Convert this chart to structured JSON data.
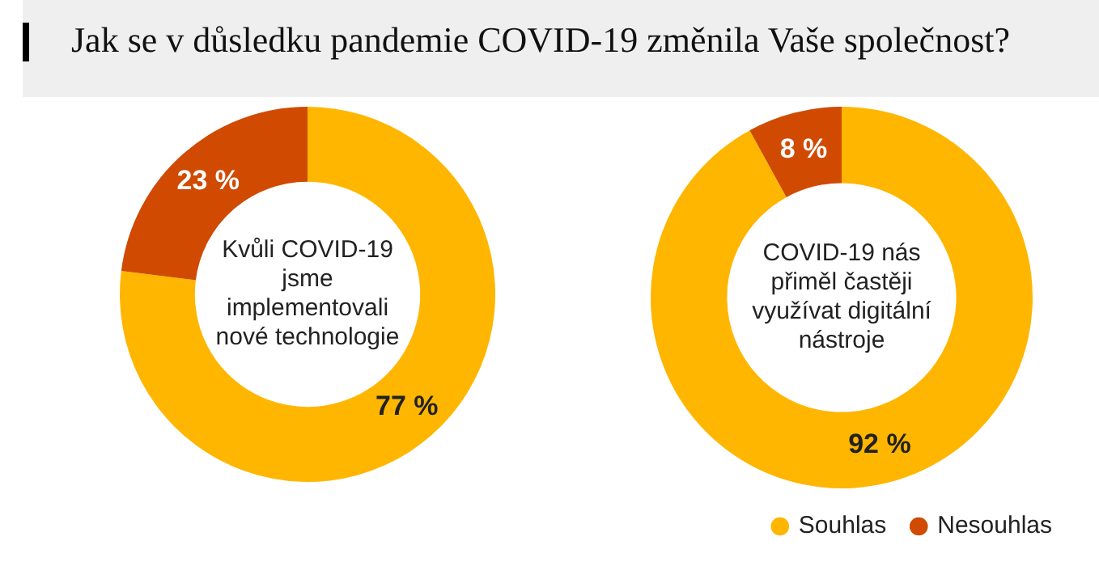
{
  "chart_data": [
    {
      "type": "donut",
      "title": "Jak se v důsledku pandemie COVID-19 změnila Vaše společnost?",
      "categories": [
        null,
        null
      ],
      "values": [
        77,
        23
      ],
      "colors": [
        "#ffb600",
        "#d04a02"
      ],
      "value_labels": [
        "77 %",
        "23 %"
      ],
      "annotations": [
        "Kvůli COVID-19 jsme implementovali nové technologie"
      ],
      "legend": false
    },
    {
      "type": "donut",
      "categories": [
        "Souhlas",
        "Nesouhlas"
      ],
      "values": [
        92,
        8
      ],
      "colors": [
        "#ffb600",
        "#d04a02"
      ],
      "value_labels": [
        "92 %",
        "8 %"
      ],
      "annotations": [
        "COVID-19 nás přiměl častěji využívat digitální nástroje"
      ],
      "legend": "bottom right"
    }
  ]
}
